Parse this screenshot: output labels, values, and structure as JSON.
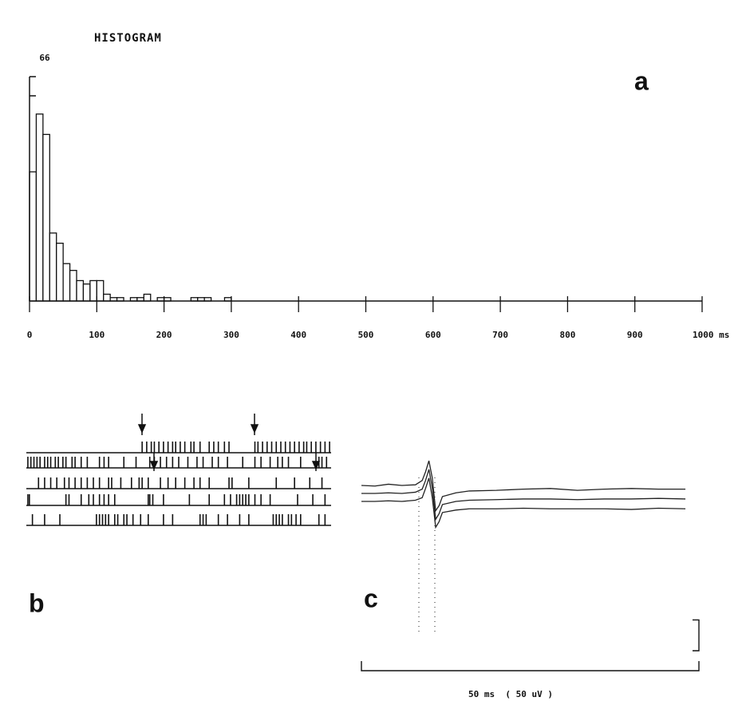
{
  "chart_data": [
    {
      "type": "histogram",
      "title": "HISTOGRAM",
      "panel": "a",
      "bins": [
        0,
        10,
        20,
        30,
        40,
        50,
        60,
        70,
        80,
        90,
        100,
        110,
        120,
        130,
        140,
        150,
        160,
        170,
        180,
        190,
        200,
        210,
        220,
        230,
        240,
        250,
        260,
        270,
        280,
        290,
        300
      ],
      "values": [
        38,
        55,
        49,
        20,
        17,
        11,
        9,
        6,
        5,
        6,
        6,
        2,
        1,
        1,
        0,
        1,
        1,
        2,
        0,
        1,
        1,
        0,
        0,
        0,
        1,
        1,
        1,
        0,
        0,
        1
      ],
      "xlim": [
        0,
        1000
      ],
      "xticks": [
        0,
        100,
        200,
        300,
        400,
        500,
        600,
        700,
        800,
        900,
        {
          "value": 1000,
          "label": "1000 ms"
        }
      ],
      "ylim": [
        0,
        66
      ],
      "yticks": [
        66
      ],
      "color": "#111"
    },
    {
      "type": "raster",
      "panel": "b",
      "xlim": [
        0,
        100
      ],
      "series": [
        {
          "values": [
            38,
            39.5,
            41,
            42,
            43.5,
            45,
            46.5,
            48,
            49,
            50.5,
            52,
            54,
            55,
            57,
            60,
            61.5,
            63,
            65,
            66.5,
            75,
            76,
            77.5,
            79,
            80.5,
            82,
            83.5,
            85,
            86.5,
            88,
            89.5,
            91,
            92,
            93.5,
            95,
            96.5,
            98,
            99.5
          ]
        },
        {
          "values": [
            0.5,
            1.5,
            2.5,
            3.5,
            4.5,
            6,
            7,
            8,
            9.5,
            10.5,
            12,
            13,
            15,
            16,
            18,
            20,
            24,
            25.5,
            27,
            32,
            36,
            40.5,
            42,
            44,
            46,
            48,
            50,
            53,
            56,
            58,
            61,
            63,
            66,
            71,
            75,
            77,
            80,
            82.5,
            84,
            86,
            90,
            96,
            97,
            98.5
          ]
        },
        {
          "values": [
            4,
            6,
            8,
            10,
            12.5,
            14,
            16,
            18,
            20,
            22,
            24,
            27,
            28,
            31,
            34.5,
            37,
            38,
            40,
            44,
            46.5,
            49,
            52,
            55,
            57,
            60,
            66.5,
            67.5,
            73,
            82,
            88,
            93,
            97
          ]
        },
        {
          "values": [
            0.5,
            1,
            13,
            14,
            18,
            20.5,
            22,
            24,
            25.5,
            27,
            29,
            40,
            40.5,
            41.5,
            45,
            53.5,
            60,
            65,
            67,
            69,
            70,
            71,
            72,
            73,
            75,
            77,
            80,
            89,
            94,
            98
          ]
        },
        {
          "values": [
            2,
            6,
            11,
            23,
            24,
            25,
            26,
            27,
            29,
            30,
            32,
            33,
            35,
            37.5,
            40,
            45,
            48,
            57,
            58,
            59,
            63,
            66,
            70,
            73,
            81,
            82,
            83,
            84,
            86,
            87,
            88.5,
            90,
            96,
            98
          ]
        }
      ],
      "color": "#111"
    },
    {
      "type": "line",
      "panel": "c",
      "x": [
        0,
        2,
        4,
        6,
        8,
        9,
        9.5,
        10,
        10.5,
        11,
        11.5,
        12,
        14,
        16,
        20,
        24,
        28,
        32,
        36,
        40,
        44,
        48
      ],
      "series": [
        {
          "values": [
            13,
            12,
            15,
            13,
            14,
            21,
            35,
            53,
            25,
            -28,
            -20,
            -5,
            1,
            4,
            5,
            7,
            8,
            5,
            7,
            8,
            7,
            7
          ]
        },
        {
          "values": [
            0,
            0,
            1,
            0,
            2,
            7,
            21,
            39,
            9,
            -42,
            -33,
            -18,
            -13,
            -11,
            -10,
            -9,
            -9,
            -10,
            -9,
            -9,
            -8,
            -9
          ]
        },
        {
          "values": [
            -13,
            -13,
            -12,
            -13,
            -11,
            -7,
            8,
            25,
            -7,
            -55,
            -46,
            -31,
            -27,
            -25,
            -25,
            -24,
            -25,
            -25,
            -25,
            -26,
            -24,
            -25
          ]
        }
      ],
      "xlim": [
        0,
        50
      ],
      "ylim": [
        -70,
        70
      ],
      "color": "#222",
      "scalebar_x": 50,
      "scalebar_y": 50,
      "scale_label": "50 ms  ( 50 uV )"
    }
  ]
}
